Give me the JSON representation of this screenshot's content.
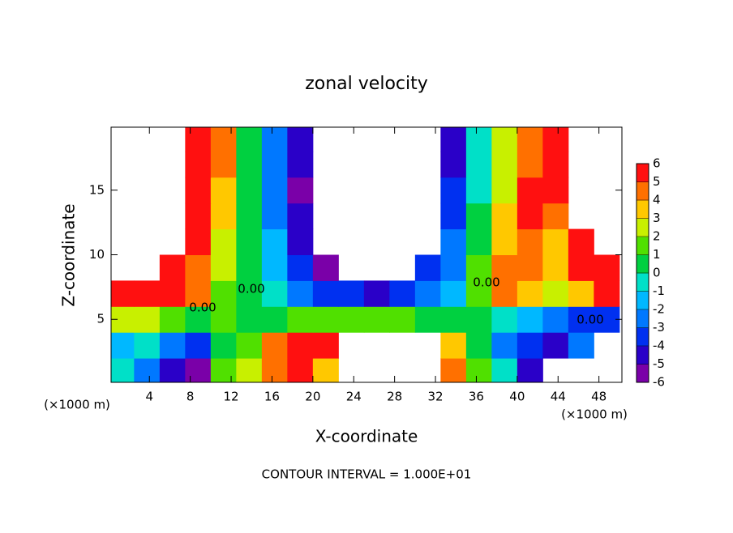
{
  "chart_data": {
    "type": "contour",
    "title": "zonal velocity",
    "x_label": "X-coordinate",
    "y_label": "Z-coordinate",
    "x_unit_left": "(×1000 m)",
    "x_unit_right": "(×1000 m)",
    "footer": "CONTOUR INTERVAL = 1.000E+01",
    "contour_labels": [
      "0.00",
      "0.00",
      "0.00",
      "0.00"
    ],
    "xlim": [
      0.25,
      50.25
    ],
    "ylim": [
      0.125,
      19.875
    ],
    "xticks": [
      4,
      8,
      12,
      16,
      20,
      24,
      28,
      32,
      36,
      40,
      44,
      48
    ],
    "yticks": [
      5,
      10,
      15
    ],
    "x": [
      1.25,
      3.75,
      6.25,
      8.75,
      11.25,
      13.75,
      16.25,
      18.75,
      21.25,
      23.75,
      26.25,
      28.75,
      31.25,
      33.75,
      36.25,
      38.75,
      41.25,
      43.75,
      46.25,
      48.75
    ],
    "y": [
      1,
      3,
      5,
      7,
      9,
      11,
      13,
      15,
      17,
      19
    ],
    "z": [
      [
        -1,
        -3,
        -5,
        -6,
        1,
        2,
        4,
        5,
        3,
        null,
        null,
        null,
        null,
        4,
        1,
        -1,
        -5,
        null,
        null,
        null
      ],
      [
        -2,
        -1,
        -3,
        -4,
        0,
        1,
        4,
        5,
        5,
        null,
        null,
        null,
        null,
        3,
        0,
        -3,
        -4,
        -5,
        -3,
        null
      ],
      [
        2,
        2,
        1,
        0.5,
        1,
        0,
        0.5,
        1,
        1,
        1.5,
        1.5,
        1,
        0.5,
        0,
        0.5,
        -1,
        -2,
        -3,
        -4,
        -4
      ],
      [
        5.5,
        5.5,
        5,
        4,
        1.5,
        0,
        -1,
        -2.5,
        -3.5,
        -4,
        -4.5,
        -3.5,
        -2.5,
        -2,
        1.5,
        4.5,
        3,
        2,
        3,
        5
      ],
      [
        null,
        null,
        6,
        4.5,
        2,
        0,
        -1.5,
        -3.5,
        -5.5,
        null,
        null,
        null,
        -4,
        -3,
        1,
        4,
        4,
        3,
        5,
        6
      ],
      [
        null,
        null,
        null,
        5,
        2.5,
        0,
        -2,
        -4.5,
        null,
        null,
        null,
        null,
        null,
        -3,
        0.5,
        3.5,
        4.5,
        3.5,
        6,
        null
      ],
      [
        null,
        null,
        null,
        5.5,
        3,
        0,
        -2.5,
        -5,
        null,
        null,
        null,
        null,
        null,
        -3.5,
        0,
        3,
        5,
        4,
        null,
        null
      ],
      [
        null,
        null,
        null,
        5.5,
        3.5,
        0.5,
        -2.5,
        -5.5,
        null,
        null,
        null,
        null,
        null,
        -4,
        -0.5,
        2.5,
        5,
        5.5,
        null,
        null
      ],
      [
        null,
        null,
        null,
        6,
        4,
        0.5,
        -2.5,
        -5,
        null,
        null,
        null,
        null,
        null,
        -4.5,
        -1,
        2,
        4.5,
        5.5,
        null,
        null
      ],
      [
        null,
        null,
        null,
        6,
        4,
        0.5,
        -2.5,
        -5,
        null,
        null,
        null,
        null,
        null,
        -5,
        -1,
        2,
        4,
        5,
        null,
        null
      ]
    ],
    "levels": [
      -6,
      -5,
      -4,
      -3,
      -2,
      -1,
      0,
      1,
      2,
      3,
      4,
      5,
      6
    ],
    "colors": [
      "#7a00a8",
      "#2a00c8",
      "#0030f0",
      "#0078ff",
      "#00b8ff",
      "#00e0c8",
      "#00d040",
      "#50e000",
      "#c8f000",
      "#ffc800",
      "#ff7000",
      "#ff1010",
      "#ff8a8a"
    ]
  }
}
